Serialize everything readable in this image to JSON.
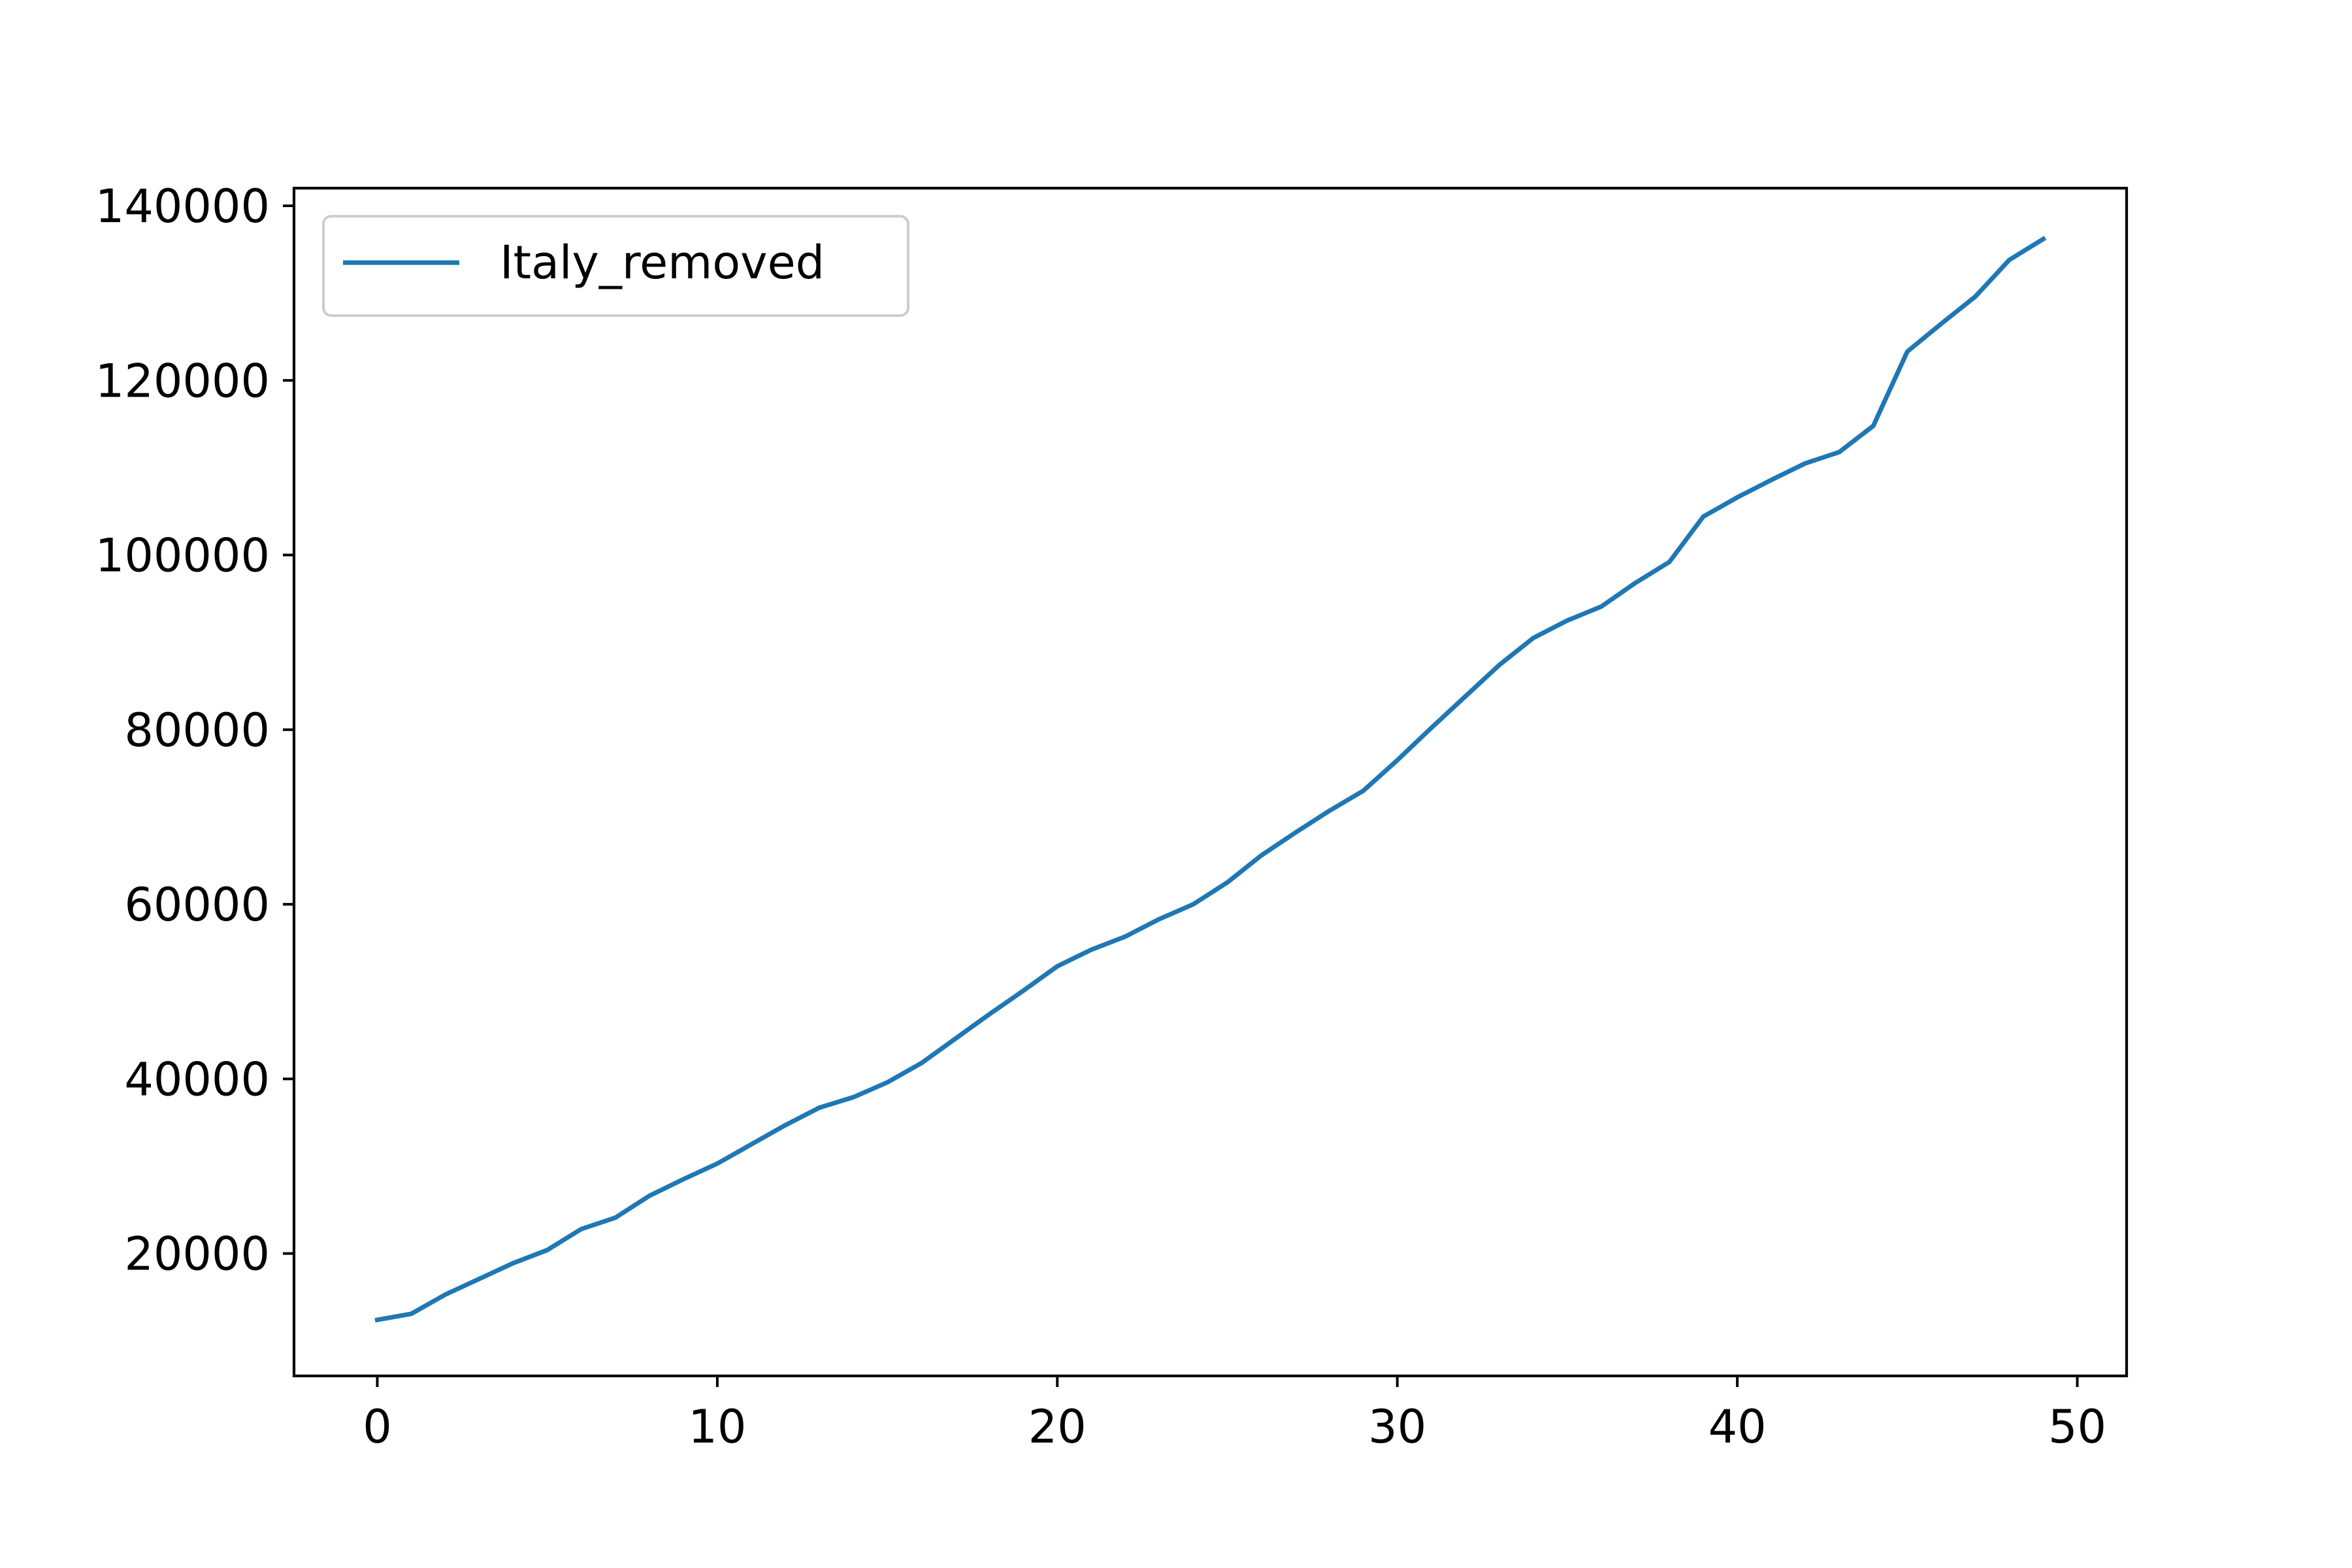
{
  "chart_data": {
    "type": "line",
    "title": "",
    "xlabel": "",
    "ylabel": "",
    "xlim": [
      -2.45,
      51.45
    ],
    "ylim": [
      5980,
      142020
    ],
    "xticks": [
      0,
      10,
      20,
      30,
      40,
      50
    ],
    "yticks": [
      20000,
      40000,
      60000,
      80000,
      100000,
      120000,
      140000
    ],
    "grid": false,
    "legend_position": "top-left",
    "series": [
      {
        "name": "Italy_removed",
        "color": "#1f77b4",
        "x": [
          0,
          1,
          2,
          3,
          4,
          5,
          6,
          7,
          8,
          9,
          10,
          11,
          12,
          13,
          14,
          15,
          16,
          17,
          18,
          19,
          20,
          21,
          22,
          23,
          24,
          25,
          26,
          27,
          28,
          29,
          30,
          31,
          32,
          33,
          34,
          35,
          36,
          37,
          38,
          39,
          40,
          41,
          42,
          43,
          44,
          45,
          46,
          47,
          48,
          49
        ],
        "y": [
          12400,
          13100,
          15300,
          17100,
          18900,
          20400,
          22800,
          24100,
          26600,
          28500,
          30300,
          32500,
          34700,
          36700,
          37900,
          39600,
          41800,
          44600,
          47400,
          50100,
          52900,
          54800,
          56300,
          58300,
          60000,
          62500,
          65600,
          68200,
          70700,
          73000,
          76500,
          80200,
          83800,
          87400,
          90500,
          92500,
          94100,
          96800,
          99200,
          104400,
          106600,
          108600,
          110500,
          111800,
          114800,
          123300,
          126500,
          129600,
          133800,
          136200
        ]
      }
    ]
  }
}
